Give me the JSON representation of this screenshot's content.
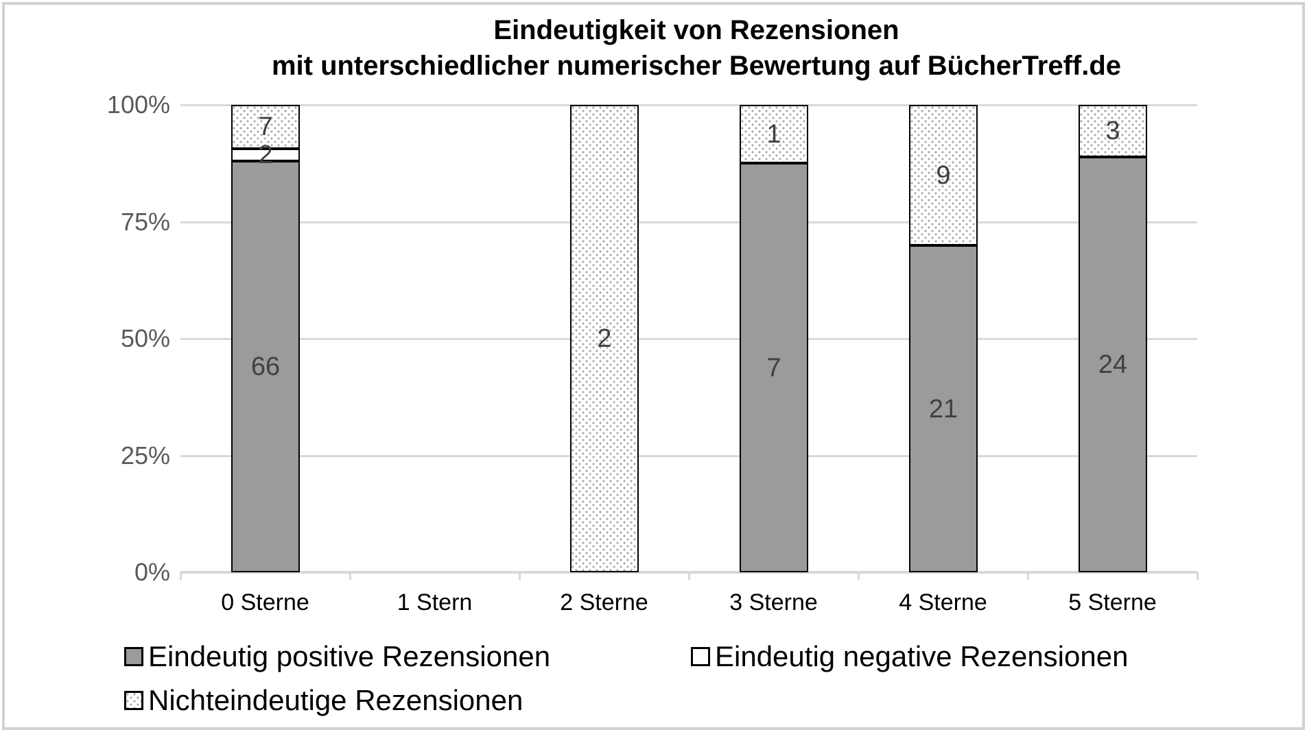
{
  "chart_data": {
    "type": "bar",
    "variant": "stacked-100-percent",
    "title_line1": "Eindeutigkeit von Rezensionen",
    "title_line2": "mit unterschiedlicher numerischer Bewertung auf BücherTreff.de",
    "categories": [
      "0 Sterne",
      "1 Stern",
      "2 Sterne",
      "3 Sterne",
      "4 Sterne",
      "5 Sterne"
    ],
    "series": [
      {
        "name": "Eindeutig positive Rezensionen",
        "key": "positive",
        "values": [
          66,
          null,
          null,
          7,
          21,
          24
        ]
      },
      {
        "name": "Eindeutig negative Rezensionen",
        "key": "negative",
        "values": [
          2,
          null,
          null,
          null,
          null,
          null
        ]
      },
      {
        "name": "Nichteindeutige Rezensionen",
        "key": "dotted",
        "values": [
          7,
          null,
          2,
          1,
          9,
          3
        ]
      }
    ],
    "yticks": [
      "100%",
      "75%",
      "50%",
      "25%",
      "0%"
    ],
    "ylim": [
      0,
      100
    ],
    "grid": "horizontal",
    "legend_position": "bottom",
    "colors": {
      "positive_fill": "#9B9B9B",
      "negative_fill": "#FFFFFF",
      "dotted_dot": "#A6A6A6",
      "bar_border": "#000000",
      "gridline": "#D9D9D9",
      "axis": "#D9D9D9",
      "title_text": "#000000",
      "ytick_text": "#595959",
      "xtick_text": "#000000",
      "data_label_text": "#404040"
    }
  }
}
